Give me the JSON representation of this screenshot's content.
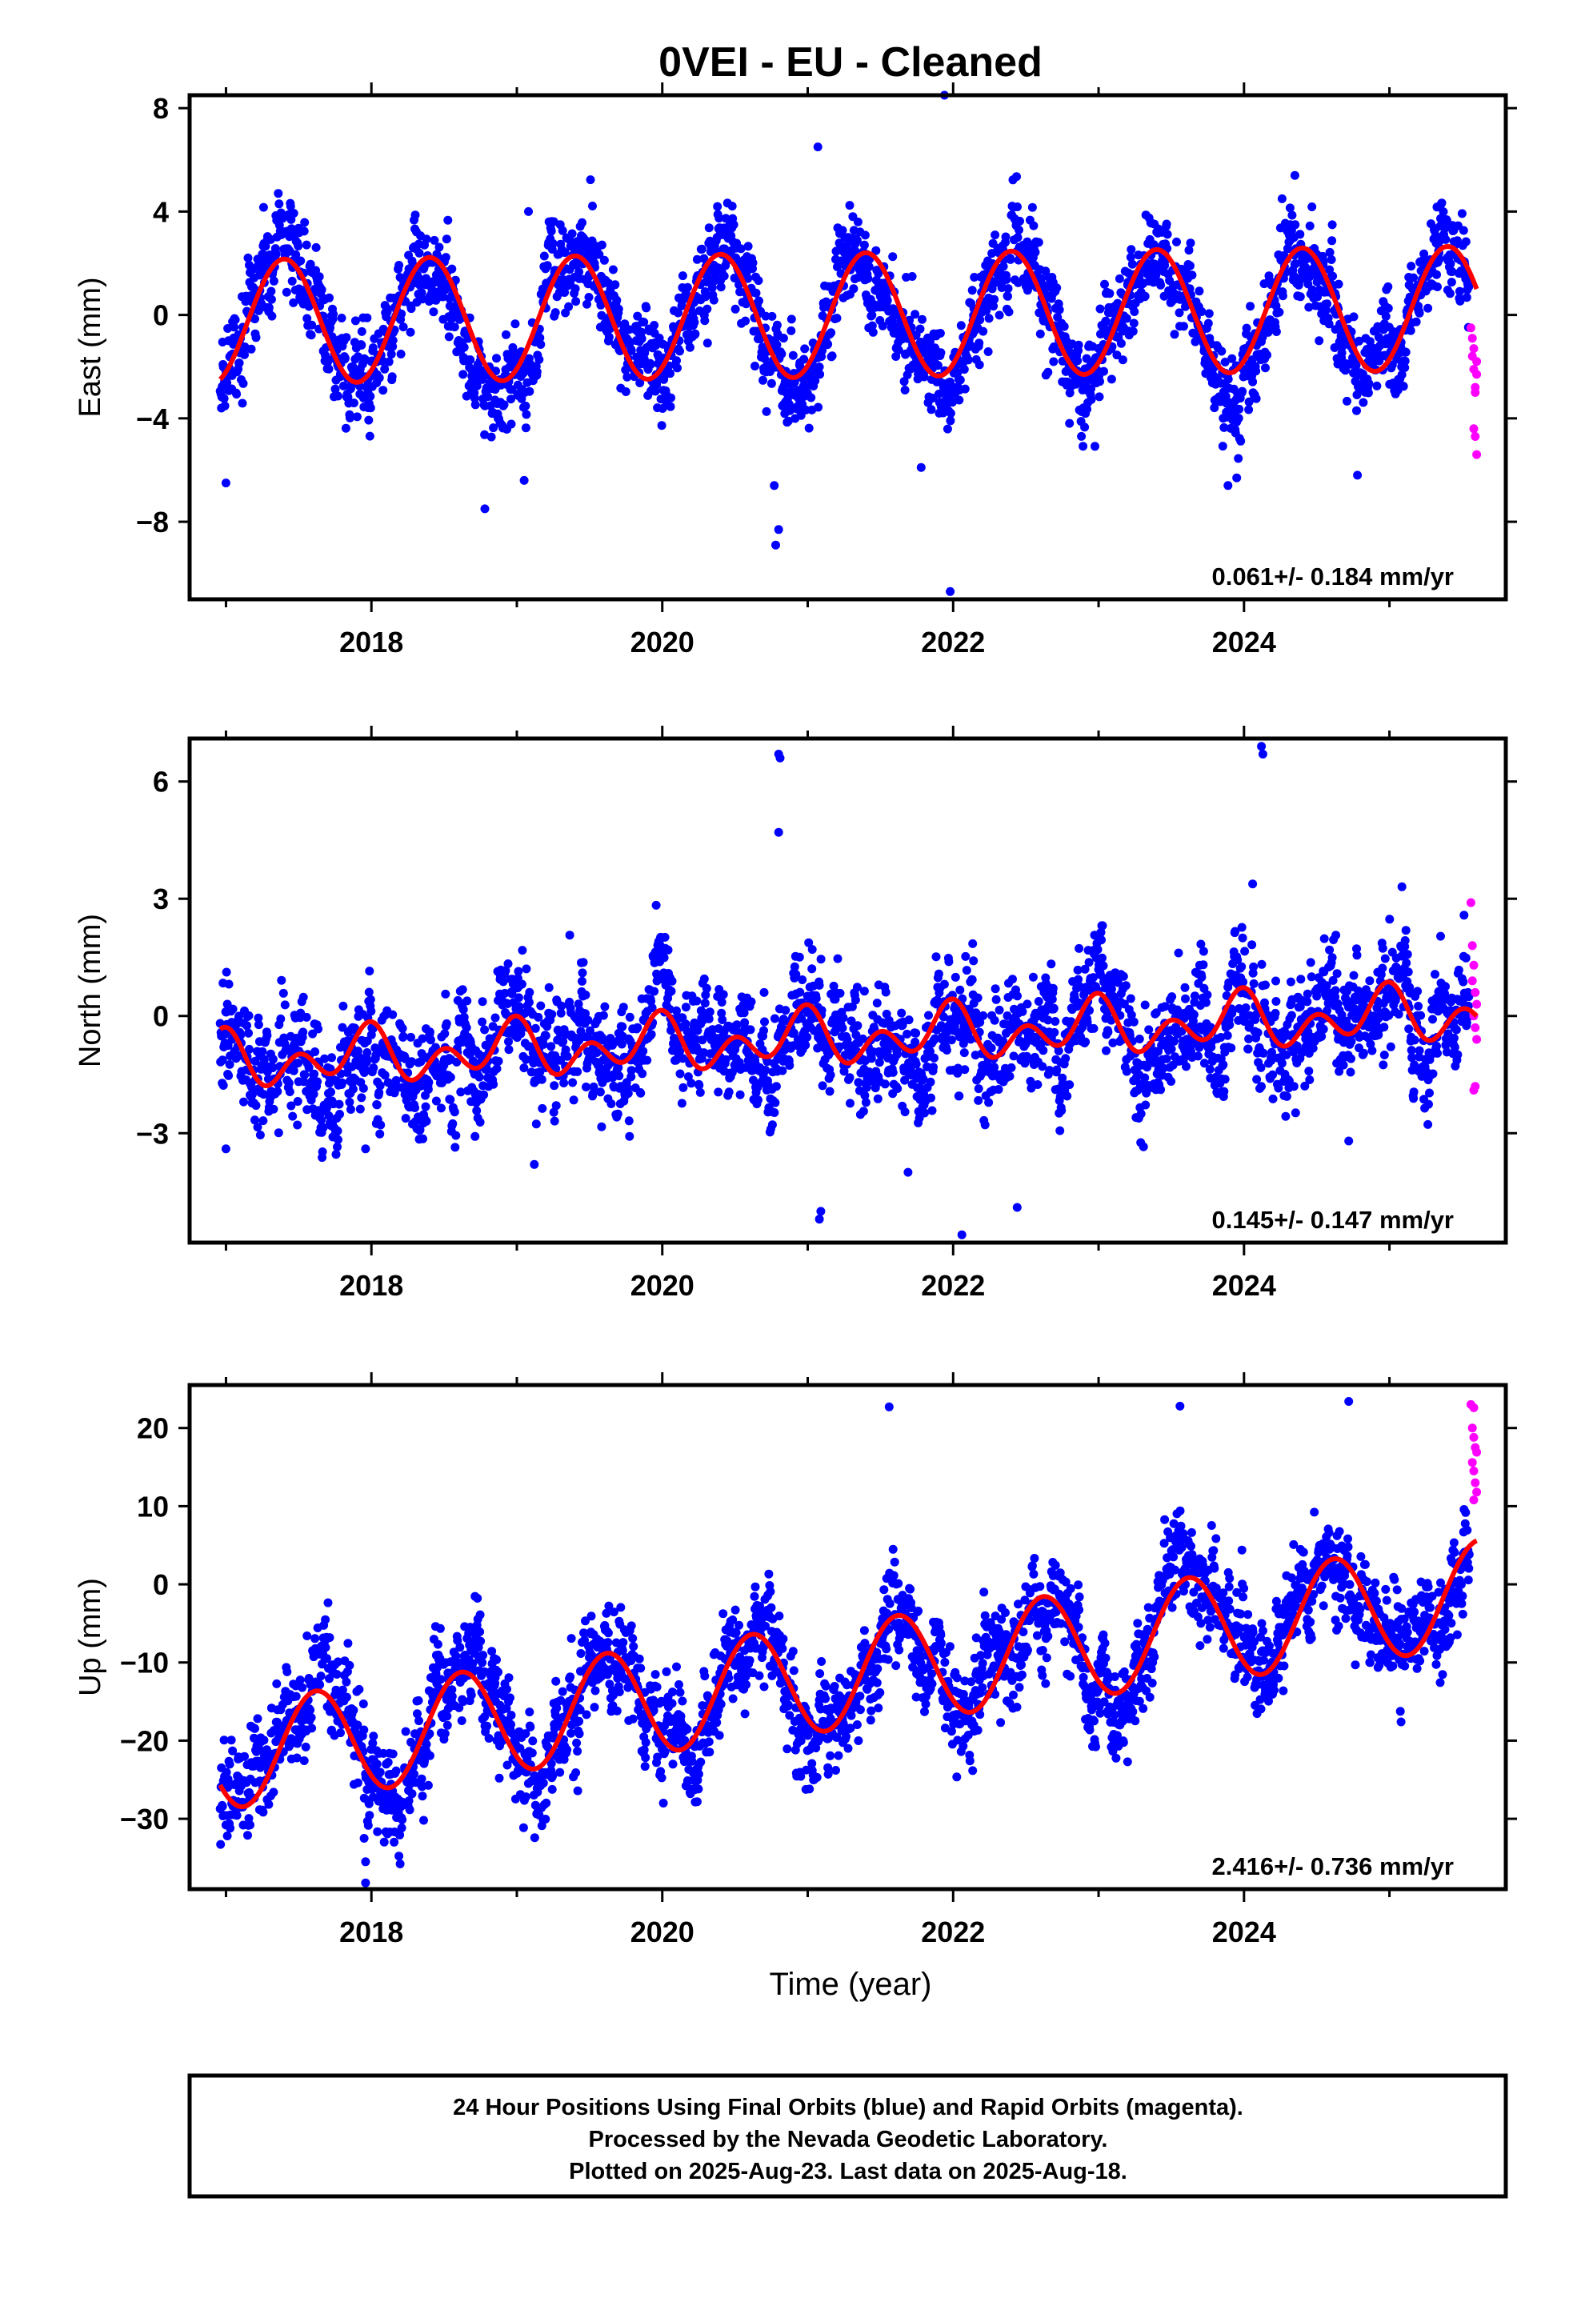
{
  "title": "0VEI  - EU - Cleaned",
  "colors": {
    "final_orbits": "#0000ff",
    "rapid_orbits": "#ff00ff",
    "model_fit": "#ff0000",
    "frame": "#000000"
  },
  "chart_data": [
    {
      "type": "scatter",
      "component": "East",
      "ylabel": "East (mm)",
      "ylim": [
        -11,
        8.5
      ],
      "yticks": [
        8,
        4,
        0,
        -4,
        -8
      ],
      "yticks_text": [
        "8",
        "4",
        "0",
        "−4",
        "−8"
      ],
      "xlim": [
        2016.75,
        2025.8
      ],
      "xticks": [
        2018,
        2020,
        2022,
        2024
      ],
      "xticks_text": [
        "2018",
        "2020",
        "2022",
        "2024"
      ],
      "rate_text": "0.061+/- 0.184 mm/yr",
      "rate_mm_per_yr": 0.061,
      "rate_sigma": 0.184,
      "series": [
        {
          "name": "Final Orbits (blue)",
          "color": "#0000ff",
          "time_range": [
            2016.96,
            2025.55
          ],
          "center_mm": -0.1,
          "slope_mm_per_yr": 0.061,
          "annual_amplitude_mm": 2.4,
          "annual_peak_time": 0.4,
          "semiannual_amplitude_mm": 0.0,
          "scatter_mm": 1.2,
          "outliers": [
            [
              2018.78,
              -7.5
            ],
            [
              2019.08,
              4.0
            ],
            [
              2019.05,
              -6.4
            ],
            [
              2020.78,
              -8.9
            ],
            [
              2020.8,
              -8.3
            ],
            [
              2020.77,
              -6.6
            ],
            [
              2021.07,
              6.5
            ],
            [
              2021.94,
              8.5
            ],
            [
              2021.98,
              -10.7
            ],
            [
              2021.78,
              -5.9
            ],
            [
              2017.0,
              -6.5
            ],
            [
              2023.89,
              -6.6
            ],
            [
              2023.95,
              -6.3
            ],
            [
              2024.78,
              -6.2
            ],
            [
              2024.35,
              5.4
            ]
          ]
        },
        {
          "name": "Rapid Orbits (magenta)",
          "color": "#ff00ff",
          "points": [
            [
              2025.56,
              -0.5
            ],
            [
              2025.57,
              -0.9
            ],
            [
              2025.57,
              -1.6
            ],
            [
              2025.58,
              -1.3
            ],
            [
              2025.58,
              -2.1
            ],
            [
              2025.59,
              -2.8
            ],
            [
              2025.59,
              -3.0
            ],
            [
              2025.6,
              -2.3
            ],
            [
              2025.58,
              -4.4
            ],
            [
              2025.59,
              -4.7
            ],
            [
              2025.6,
              -5.4
            ],
            [
              2025.6,
              -1.8
            ]
          ]
        }
      ],
      "model": {
        "name": "Model fit",
        "color": "#ff0000",
        "offset_mm": 0.0,
        "slope_mm_per_yr": 0.061,
        "annual_amplitude_mm": 2.4,
        "annual_peak_time": 0.4,
        "semiannual_amplitude_mm": 0.0,
        "range": [
          2016.96,
          2025.6
        ]
      }
    },
    {
      "type": "scatter",
      "component": "North",
      "ylabel": "North (mm)",
      "ylim": [
        -5.8,
        7.1
      ],
      "yticks": [
        6,
        3,
        0,
        -3
      ],
      "yticks_text": [
        "6",
        "3",
        "0",
        "−3"
      ],
      "xlim": [
        2016.75,
        2025.8
      ],
      "xticks": [
        2018,
        2020,
        2022,
        2024
      ],
      "xticks_text": [
        "2018",
        "2020",
        "2022",
        "2024"
      ],
      "rate_text": "0.145+/- 0.147 mm/yr",
      "rate_mm_per_yr": 0.145,
      "rate_sigma": 0.147,
      "series": [
        {
          "name": "Final Orbits (blue)",
          "color": "#0000ff",
          "time_range": [
            2016.96,
            2025.55
          ],
          "center_mm": -0.55,
          "slope_mm_per_yr": 0.145,
          "annual_amplitude_mm": 0.4,
          "annual_peak_time": 0.95,
          "semiannual_amplitude_mm": 0.5,
          "semiannual_phase": 0.0,
          "scatter_mm": 0.95,
          "outliers": [
            [
              2020.8,
              6.7
            ],
            [
              2020.81,
              6.6
            ],
            [
              2020.8,
              4.7
            ],
            [
              2021.08,
              -5.2
            ],
            [
              2021.09,
              -5.0
            ],
            [
              2022.06,
              -5.6
            ],
            [
              2022.44,
              -4.9
            ],
            [
              2021.69,
              -4.0
            ],
            [
              2024.12,
              6.9
            ],
            [
              2024.13,
              6.7
            ],
            [
              2024.72,
              -3.2
            ],
            [
              2017.0,
              -3.4
            ],
            [
              2017.96,
              -3.4
            ],
            [
              2019.12,
              -3.8
            ]
          ]
        },
        {
          "name": "Rapid Orbits (magenta)",
          "color": "#ff00ff",
          "points": [
            [
              2025.56,
              2.9
            ],
            [
              2025.57,
              1.8
            ],
            [
              2025.58,
              1.3
            ],
            [
              2025.57,
              0.9
            ],
            [
              2025.59,
              0.6
            ],
            [
              2025.6,
              0.3
            ],
            [
              2025.58,
              0.0
            ],
            [
              2025.59,
              -0.3
            ],
            [
              2025.6,
              -0.6
            ],
            [
              2025.58,
              -1.9
            ],
            [
              2025.59,
              -1.8
            ]
          ]
        }
      ],
      "model": {
        "name": "Model fit",
        "color": "#ff0000",
        "offset_mm": -0.55,
        "slope_mm_per_yr": 0.145,
        "annual_amplitude_mm": 0.4,
        "annual_peak_time": 0.95,
        "semiannual_amplitude_mm": 0.5,
        "semiannual_phase": 0.0,
        "range": [
          2016.96,
          2025.6
        ]
      }
    },
    {
      "type": "scatter",
      "component": "Up",
      "ylabel": "Up (mm)",
      "ylim": [
        -39,
        25.5
      ],
      "yticks": [
        20,
        10,
        0,
        -10,
        -20,
        -30
      ],
      "yticks_text": [
        "20",
        "10",
        "0",
        "−10",
        "−20",
        "−30"
      ],
      "xlim": [
        2016.75,
        2025.8
      ],
      "xticks": [
        2018,
        2020,
        2022,
        2024
      ],
      "xticks_text": [
        "2018",
        "2020",
        "2022",
        "2024"
      ],
      "xlabel": "Time (year)",
      "rate_text": "2.416+/- 0.736 mm/yr",
      "rate_mm_per_yr": 2.416,
      "rate_sigma": 0.736,
      "series": [
        {
          "name": "Final Orbits (blue)",
          "color": "#0000ff",
          "time_range": [
            2016.96,
            2025.55
          ],
          "center_mm": -11.6,
          "slope_mm_per_yr": 2.416,
          "annual_amplitude_mm": 6.8,
          "annual_peak_time": 0.62,
          "semiannual_amplitude_mm": 0.0,
          "scatter_mm": 4.2,
          "outliers": [
            [
              2017.96,
              -38.2
            ],
            [
              2017.96,
              -35.5
            ],
            [
              2017.95,
              -32.5
            ],
            [
              2017.0,
              -30.8
            ],
            [
              2017.03,
              -29.5
            ],
            [
              2019.96,
              -22.8
            ],
            [
              2021.56,
              22.7
            ],
            [
              2023.56,
              22.8
            ],
            [
              2024.72,
              23.4
            ],
            [
              2025.08,
              -17.6
            ],
            [
              2022.13,
              -17.5
            ]
          ]
        },
        {
          "name": "Rapid Orbits (magenta)",
          "color": "#ff00ff",
          "points": [
            [
              2025.56,
              23.0
            ],
            [
              2025.58,
              22.6
            ],
            [
              2025.57,
              20.0
            ],
            [
              2025.58,
              18.8
            ],
            [
              2025.59,
              17.5
            ],
            [
              2025.6,
              16.9
            ],
            [
              2025.57,
              15.6
            ],
            [
              2025.58,
              14.5
            ],
            [
              2025.59,
              13.0
            ],
            [
              2025.6,
              11.8
            ],
            [
              2025.58,
              10.8
            ]
          ]
        }
      ],
      "model": {
        "name": "Model fit",
        "color": "#ff0000",
        "offset_mm": -11.6,
        "slope_mm_per_yr": 2.416,
        "annual_amplitude_mm": 6.8,
        "annual_peak_time": 0.62,
        "semiannual_amplitude_mm": 0.0,
        "range": [
          2016.96,
          2025.6
        ]
      }
    }
  ],
  "footer": {
    "line1": "24 Hour Positions Using Final Orbits (blue) and Rapid Orbits (magenta).",
    "line2": "Processed by the Nevada Geodetic Laboratory.",
    "line3": "Plotted on 2025-Aug-23. Last data on 2025-Aug-18."
  }
}
